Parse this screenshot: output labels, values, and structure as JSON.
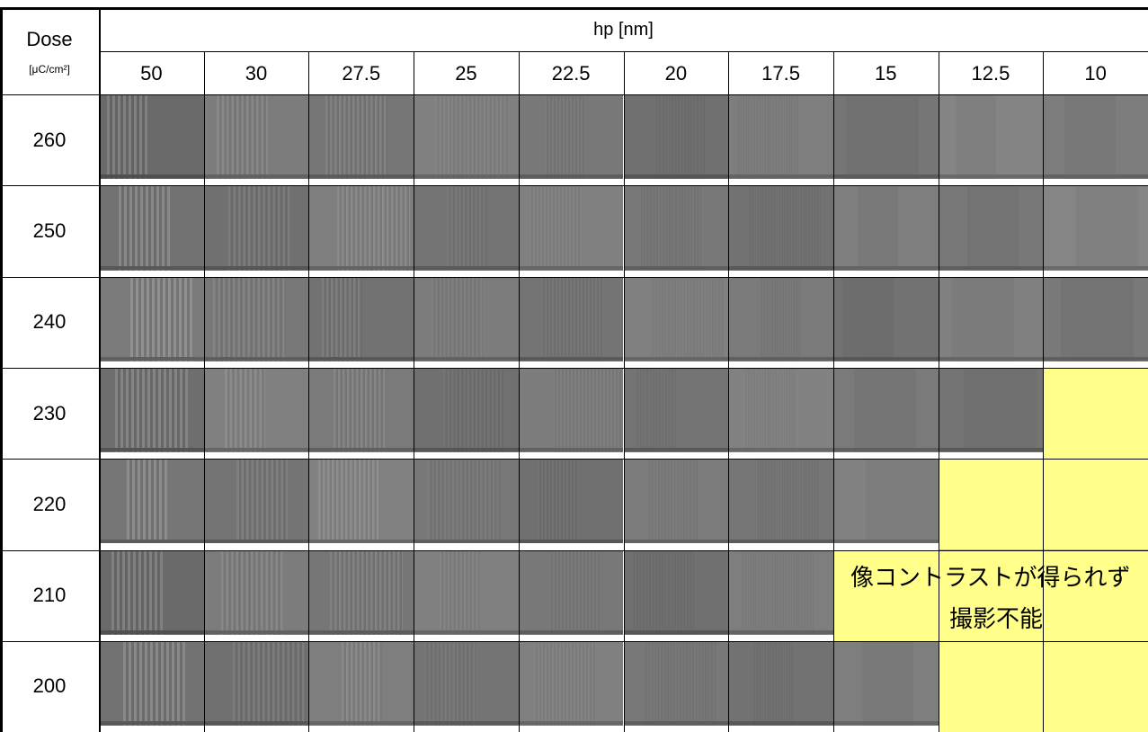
{
  "header": {
    "dose": "Dose",
    "unit": "[μC/cm²]",
    "hp": "hp [nm]"
  },
  "columns": [
    50,
    30,
    27.5,
    25,
    22.5,
    20,
    17.5,
    15,
    12.5,
    10
  ],
  "rows": [
    260,
    250,
    240,
    230,
    220,
    210,
    200
  ],
  "note": {
    "line1": "像コントラストが得られず",
    "line2": "撮影不能"
  }
}
